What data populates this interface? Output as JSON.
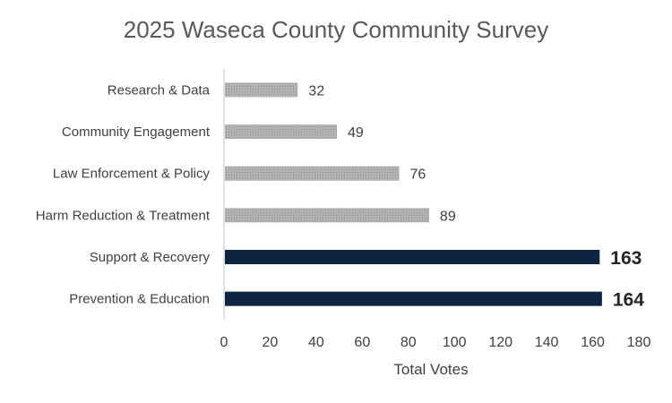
{
  "chart_data": {
    "type": "bar",
    "orientation": "horizontal",
    "title": "2025 Waseca County Community Survey",
    "xlabel": "Total Votes",
    "ylabel": "",
    "xlim": [
      0,
      180
    ],
    "xticks": [
      0,
      20,
      40,
      60,
      80,
      100,
      120,
      140,
      160,
      180
    ],
    "grid": false,
    "legend": "none",
    "categories": [
      "Research & Data",
      "Community Engagement",
      "Law Enforcement & Policy",
      "Harm Reduction & Treatment",
      "Support & Recovery",
      "Prevention & Education"
    ],
    "values": [
      32,
      49,
      76,
      89,
      163,
      164
    ],
    "highlighted": [
      false,
      false,
      false,
      false,
      true,
      true
    ],
    "colors": {
      "default_bar": "#a6a6a6",
      "highlight_bar": "#0f2440",
      "axis": "#d9d9d9"
    }
  }
}
